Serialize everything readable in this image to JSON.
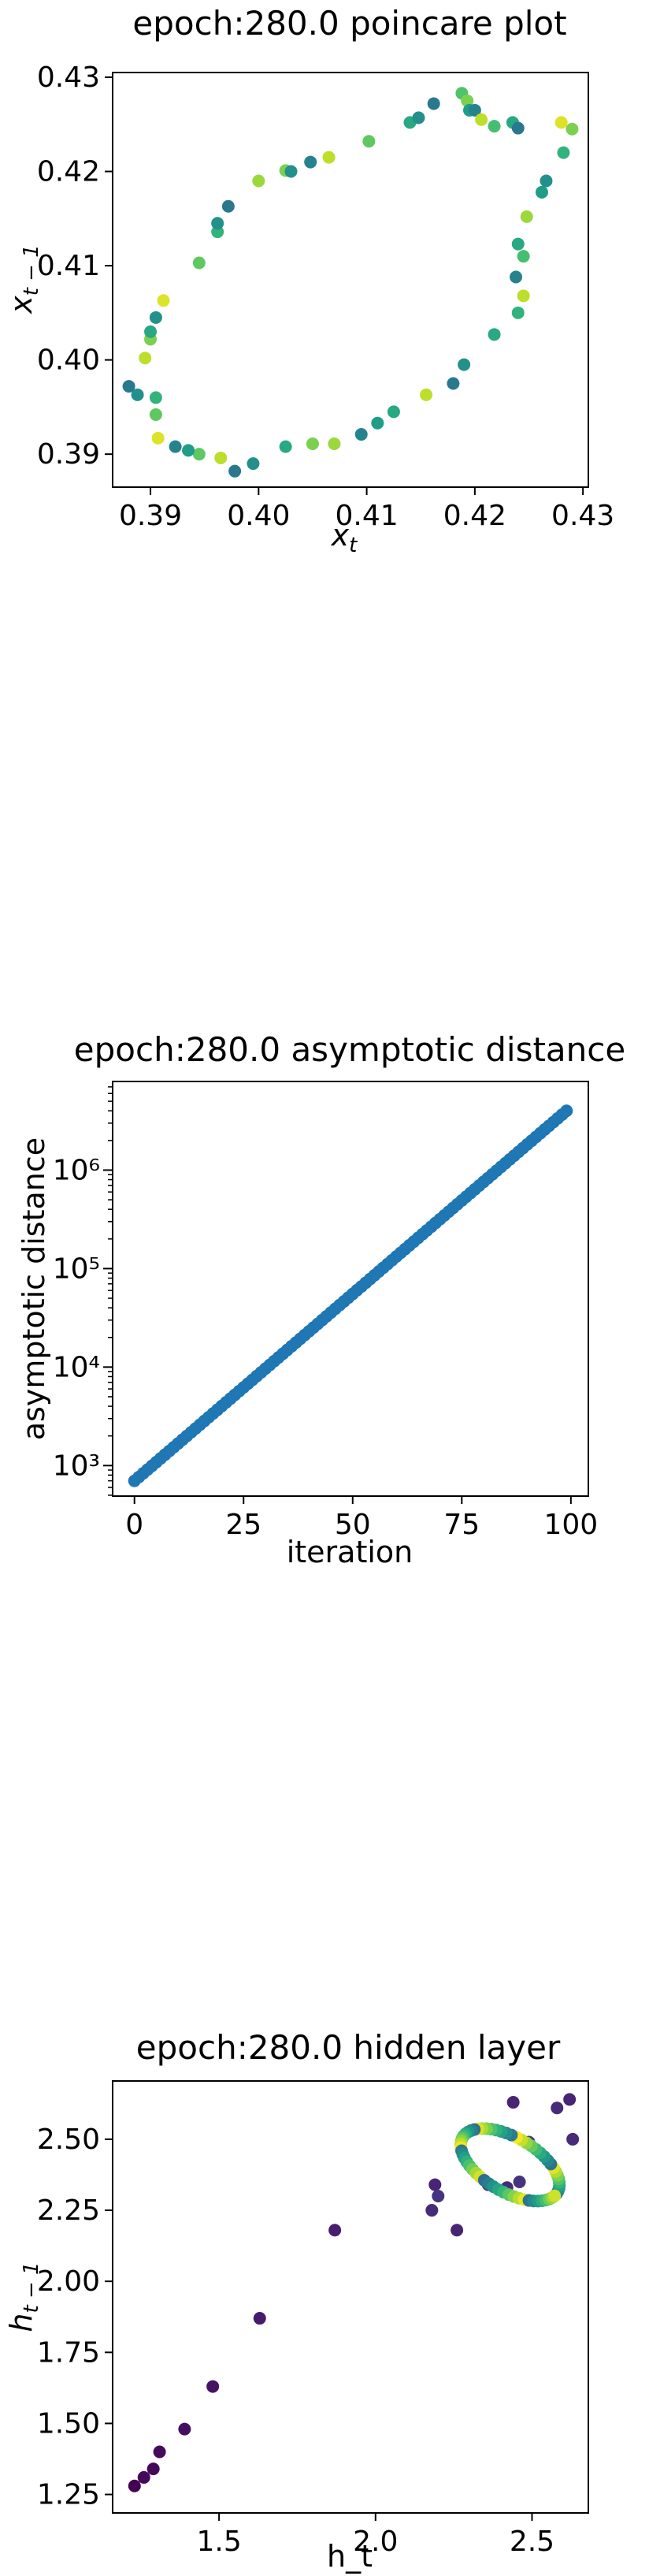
{
  "chart_data": [
    {
      "type": "scatter",
      "title": "epoch:280.0 poincare plot",
      "xlabel": "x_t",
      "ylabel": "x_t−1",
      "xlim": [
        0.3865,
        0.4305
      ],
      "ylim": [
        0.3865,
        0.4305
      ],
      "xticks": [
        "0.39",
        "0.40",
        "0.41",
        "0.42",
        "0.43"
      ],
      "yticks": [
        "0.39",
        "0.40",
        "0.41",
        "0.42",
        "0.43"
      ],
      "grid": false,
      "colormap": "viridis",
      "points": [
        {
          "x": 0.4188,
          "y": 0.4283,
          "c": 0.72
        },
        {
          "x": 0.4193,
          "y": 0.4275,
          "c": 0.8
        },
        {
          "x": 0.4195,
          "y": 0.4265,
          "c": 0.55
        },
        {
          "x": 0.42,
          "y": 0.4265,
          "c": 0.45
        },
        {
          "x": 0.4206,
          "y": 0.4255,
          "c": 0.9
        },
        {
          "x": 0.4218,
          "y": 0.4248,
          "c": 0.7
        },
        {
          "x": 0.4235,
          "y": 0.4252,
          "c": 0.6
        },
        {
          "x": 0.424,
          "y": 0.4246,
          "c": 0.4
        },
        {
          "x": 0.428,
          "y": 0.4252,
          "c": 0.95
        },
        {
          "x": 0.429,
          "y": 0.4245,
          "c": 0.8
        },
        {
          "x": 0.4282,
          "y": 0.422,
          "c": 0.65
        },
        {
          "x": 0.4266,
          "y": 0.419,
          "c": 0.5
        },
        {
          "x": 0.4262,
          "y": 0.4178,
          "c": 0.55
        },
        {
          "x": 0.4248,
          "y": 0.4152,
          "c": 0.85
        },
        {
          "x": 0.424,
          "y": 0.4123,
          "c": 0.6
        },
        {
          "x": 0.4245,
          "y": 0.411,
          "c": 0.7
        },
        {
          "x": 0.4238,
          "y": 0.4088,
          "c": 0.45
        },
        {
          "x": 0.4245,
          "y": 0.4068,
          "c": 0.9
        },
        {
          "x": 0.424,
          "y": 0.405,
          "c": 0.65
        },
        {
          "x": 0.4218,
          "y": 0.4027,
          "c": 0.6
        },
        {
          "x": 0.419,
          "y": 0.3995,
          "c": 0.5
        },
        {
          "x": 0.418,
          "y": 0.3975,
          "c": 0.4
        },
        {
          "x": 0.4155,
          "y": 0.3963,
          "c": 0.9
        },
        {
          "x": 0.4125,
          "y": 0.3945,
          "c": 0.6
        },
        {
          "x": 0.411,
          "y": 0.3933,
          "c": 0.55
        },
        {
          "x": 0.4095,
          "y": 0.3921,
          "c": 0.45
        },
        {
          "x": 0.407,
          "y": 0.3911,
          "c": 0.85
        },
        {
          "x": 0.405,
          "y": 0.3911,
          "c": 0.8
        },
        {
          "x": 0.4025,
          "y": 0.3908,
          "c": 0.6
        },
        {
          "x": 0.3995,
          "y": 0.389,
          "c": 0.5
        },
        {
          "x": 0.3978,
          "y": 0.3882,
          "c": 0.4
        },
        {
          "x": 0.3965,
          "y": 0.3896,
          "c": 0.9
        },
        {
          "x": 0.3945,
          "y": 0.39,
          "c": 0.75
        },
        {
          "x": 0.3935,
          "y": 0.3904,
          "c": 0.55
        },
        {
          "x": 0.3923,
          "y": 0.3908,
          "c": 0.45
        },
        {
          "x": 0.3907,
          "y": 0.3917,
          "c": 0.95
        },
        {
          "x": 0.3905,
          "y": 0.3942,
          "c": 0.75
        },
        {
          "x": 0.3905,
          "y": 0.396,
          "c": 0.65
        },
        {
          "x": 0.3888,
          "y": 0.3963,
          "c": 0.5
        },
        {
          "x": 0.388,
          "y": 0.3972,
          "c": 0.4
        },
        {
          "x": 0.3895,
          "y": 0.4002,
          "c": 0.9
        },
        {
          "x": 0.39,
          "y": 0.4022,
          "c": 0.8
        },
        {
          "x": 0.39,
          "y": 0.403,
          "c": 0.6
        },
        {
          "x": 0.3905,
          "y": 0.4045,
          "c": 0.5
        },
        {
          "x": 0.3912,
          "y": 0.4063,
          "c": 0.95
        },
        {
          "x": 0.3945,
          "y": 0.4103,
          "c": 0.75
        },
        {
          "x": 0.3962,
          "y": 0.4136,
          "c": 0.65
        },
        {
          "x": 0.3962,
          "y": 0.4145,
          "c": 0.5
        },
        {
          "x": 0.3972,
          "y": 0.4163,
          "c": 0.4
        },
        {
          "x": 0.4,
          "y": 0.419,
          "c": 0.85
        },
        {
          "x": 0.4025,
          "y": 0.4201,
          "c": 0.8
        },
        {
          "x": 0.403,
          "y": 0.42,
          "c": 0.5
        },
        {
          "x": 0.4048,
          "y": 0.421,
          "c": 0.45
        },
        {
          "x": 0.4065,
          "y": 0.4215,
          "c": 0.9
        },
        {
          "x": 0.4102,
          "y": 0.4232,
          "c": 0.75
        },
        {
          "x": 0.414,
          "y": 0.4252,
          "c": 0.6
        },
        {
          "x": 0.4148,
          "y": 0.4257,
          "c": 0.5
        },
        {
          "x": 0.4162,
          "y": 0.4272,
          "c": 0.4
        }
      ]
    },
    {
      "type": "scatter",
      "title": "epoch:280.0 asymptotic distance",
      "xlabel": "iteration",
      "ylabel": "asymptotic distance",
      "yscale": "log",
      "xlim": [
        -5,
        104
      ],
      "ylim_log10": [
        2.69,
        6.9
      ],
      "xticks": [
        "0",
        "25",
        "50",
        "75",
        "100"
      ],
      "yticks": [
        "10³",
        "10⁴",
        "10⁵",
        "10⁶"
      ],
      "grid": false,
      "color": "#1f77b4",
      "series_rule": {
        "start": 700,
        "end": 4000000,
        "count": 100
      }
    },
    {
      "type": "scatter",
      "title": "epoch:280.0 hidden layer",
      "xlabel": "h_t",
      "ylabel": "h_t−1",
      "xlim": [
        1.16,
        2.68
      ],
      "ylim": [
        1.185,
        2.705
      ],
      "xticks": [
        "1.5",
        "2.0",
        "2.5"
      ],
      "yticks": [
        "1.25",
        "1.50",
        "1.75",
        "2.00",
        "2.25",
        "2.50"
      ],
      "grid": false,
      "colormap": "viridis",
      "points": [
        {
          "x": 1.23,
          "y": 1.28,
          "c": 0.0
        },
        {
          "x": 1.26,
          "y": 1.31,
          "c": 0.02
        },
        {
          "x": 1.29,
          "y": 1.34,
          "c": 0.02
        },
        {
          "x": 1.31,
          "y": 1.4,
          "c": 0.03
        },
        {
          "x": 1.39,
          "y": 1.48,
          "c": 0.04
        },
        {
          "x": 1.48,
          "y": 1.63,
          "c": 0.05
        },
        {
          "x": 1.63,
          "y": 1.87,
          "c": 0.07
        },
        {
          "x": 1.87,
          "y": 2.18,
          "c": 0.08
        },
        {
          "x": 2.19,
          "y": 2.34,
          "c": 0.1
        },
        {
          "x": 2.18,
          "y": 2.25,
          "c": 0.12
        },
        {
          "x": 2.26,
          "y": 2.18,
          "c": 0.1
        },
        {
          "x": 2.36,
          "y": 2.34,
          "c": 0.12
        },
        {
          "x": 2.44,
          "y": 2.63,
          "c": 0.1
        },
        {
          "x": 2.58,
          "y": 2.61,
          "c": 0.12
        },
        {
          "x": 2.62,
          "y": 2.64,
          "c": 0.1
        },
        {
          "x": 2.63,
          "y": 2.5,
          "c": 0.12
        },
        {
          "x": 2.49,
          "y": 2.49,
          "c": 0.15
        },
        {
          "x": 2.46,
          "y": 2.35,
          "c": 0.15
        },
        {
          "x": 2.42,
          "y": 2.33,
          "c": 0.12
        },
        {
          "x": 2.2,
          "y": 2.3,
          "c": 0.15
        }
      ],
      "loop": {
        "cx": 2.43,
        "cy": 2.41,
        "rx": 0.18,
        "ry": 0.17,
        "count": 60
      }
    }
  ]
}
